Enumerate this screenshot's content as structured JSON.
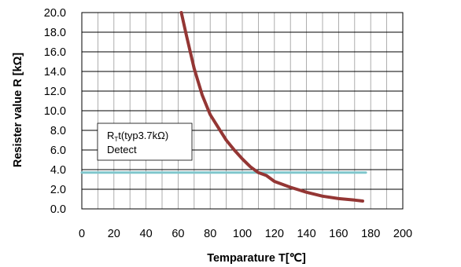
{
  "chart_data": {
    "type": "line",
    "title": "",
    "xlabel": "Temparature T[℃]",
    "ylabel": "Resister value  R [kΩ]",
    "xlim": [
      0,
      200
    ],
    "ylim": [
      0,
      20
    ],
    "x_ticks": [
      "0",
      "20",
      "40",
      "60",
      "80",
      "100",
      "120",
      "140",
      "160",
      "180",
      "200"
    ],
    "y_ticks": [
      "0.0",
      "2.0",
      "4.0",
      "6.0",
      "8.0",
      "10.0",
      "12.0",
      "14.0",
      "16.0",
      "18.0",
      "20.0"
    ],
    "grid": true,
    "series": [
      {
        "color": "#943634",
        "x": [
          62,
          65,
          70,
          75,
          80,
          85,
          90,
          95,
          100,
          105,
          110,
          115,
          120,
          130,
          140,
          150,
          160,
          170,
          175
        ],
        "y": [
          20.0,
          17.8,
          14.3,
          11.6,
          9.6,
          8.3,
          7.0,
          6.0,
          5.1,
          4.3,
          3.7,
          3.4,
          2.8,
          2.2,
          1.7,
          1.3,
          1.05,
          0.9,
          0.8
        ]
      },
      {
        "color": "#7fc6cc",
        "x": [
          0,
          177
        ],
        "y": [
          3.7,
          3.7
        ]
      }
    ],
    "annotation": {
      "line1_main": "R",
      "line1_sub": "T",
      "line1_rest": "t(typ3.7kΩ)",
      "line2": "Detect"
    }
  }
}
